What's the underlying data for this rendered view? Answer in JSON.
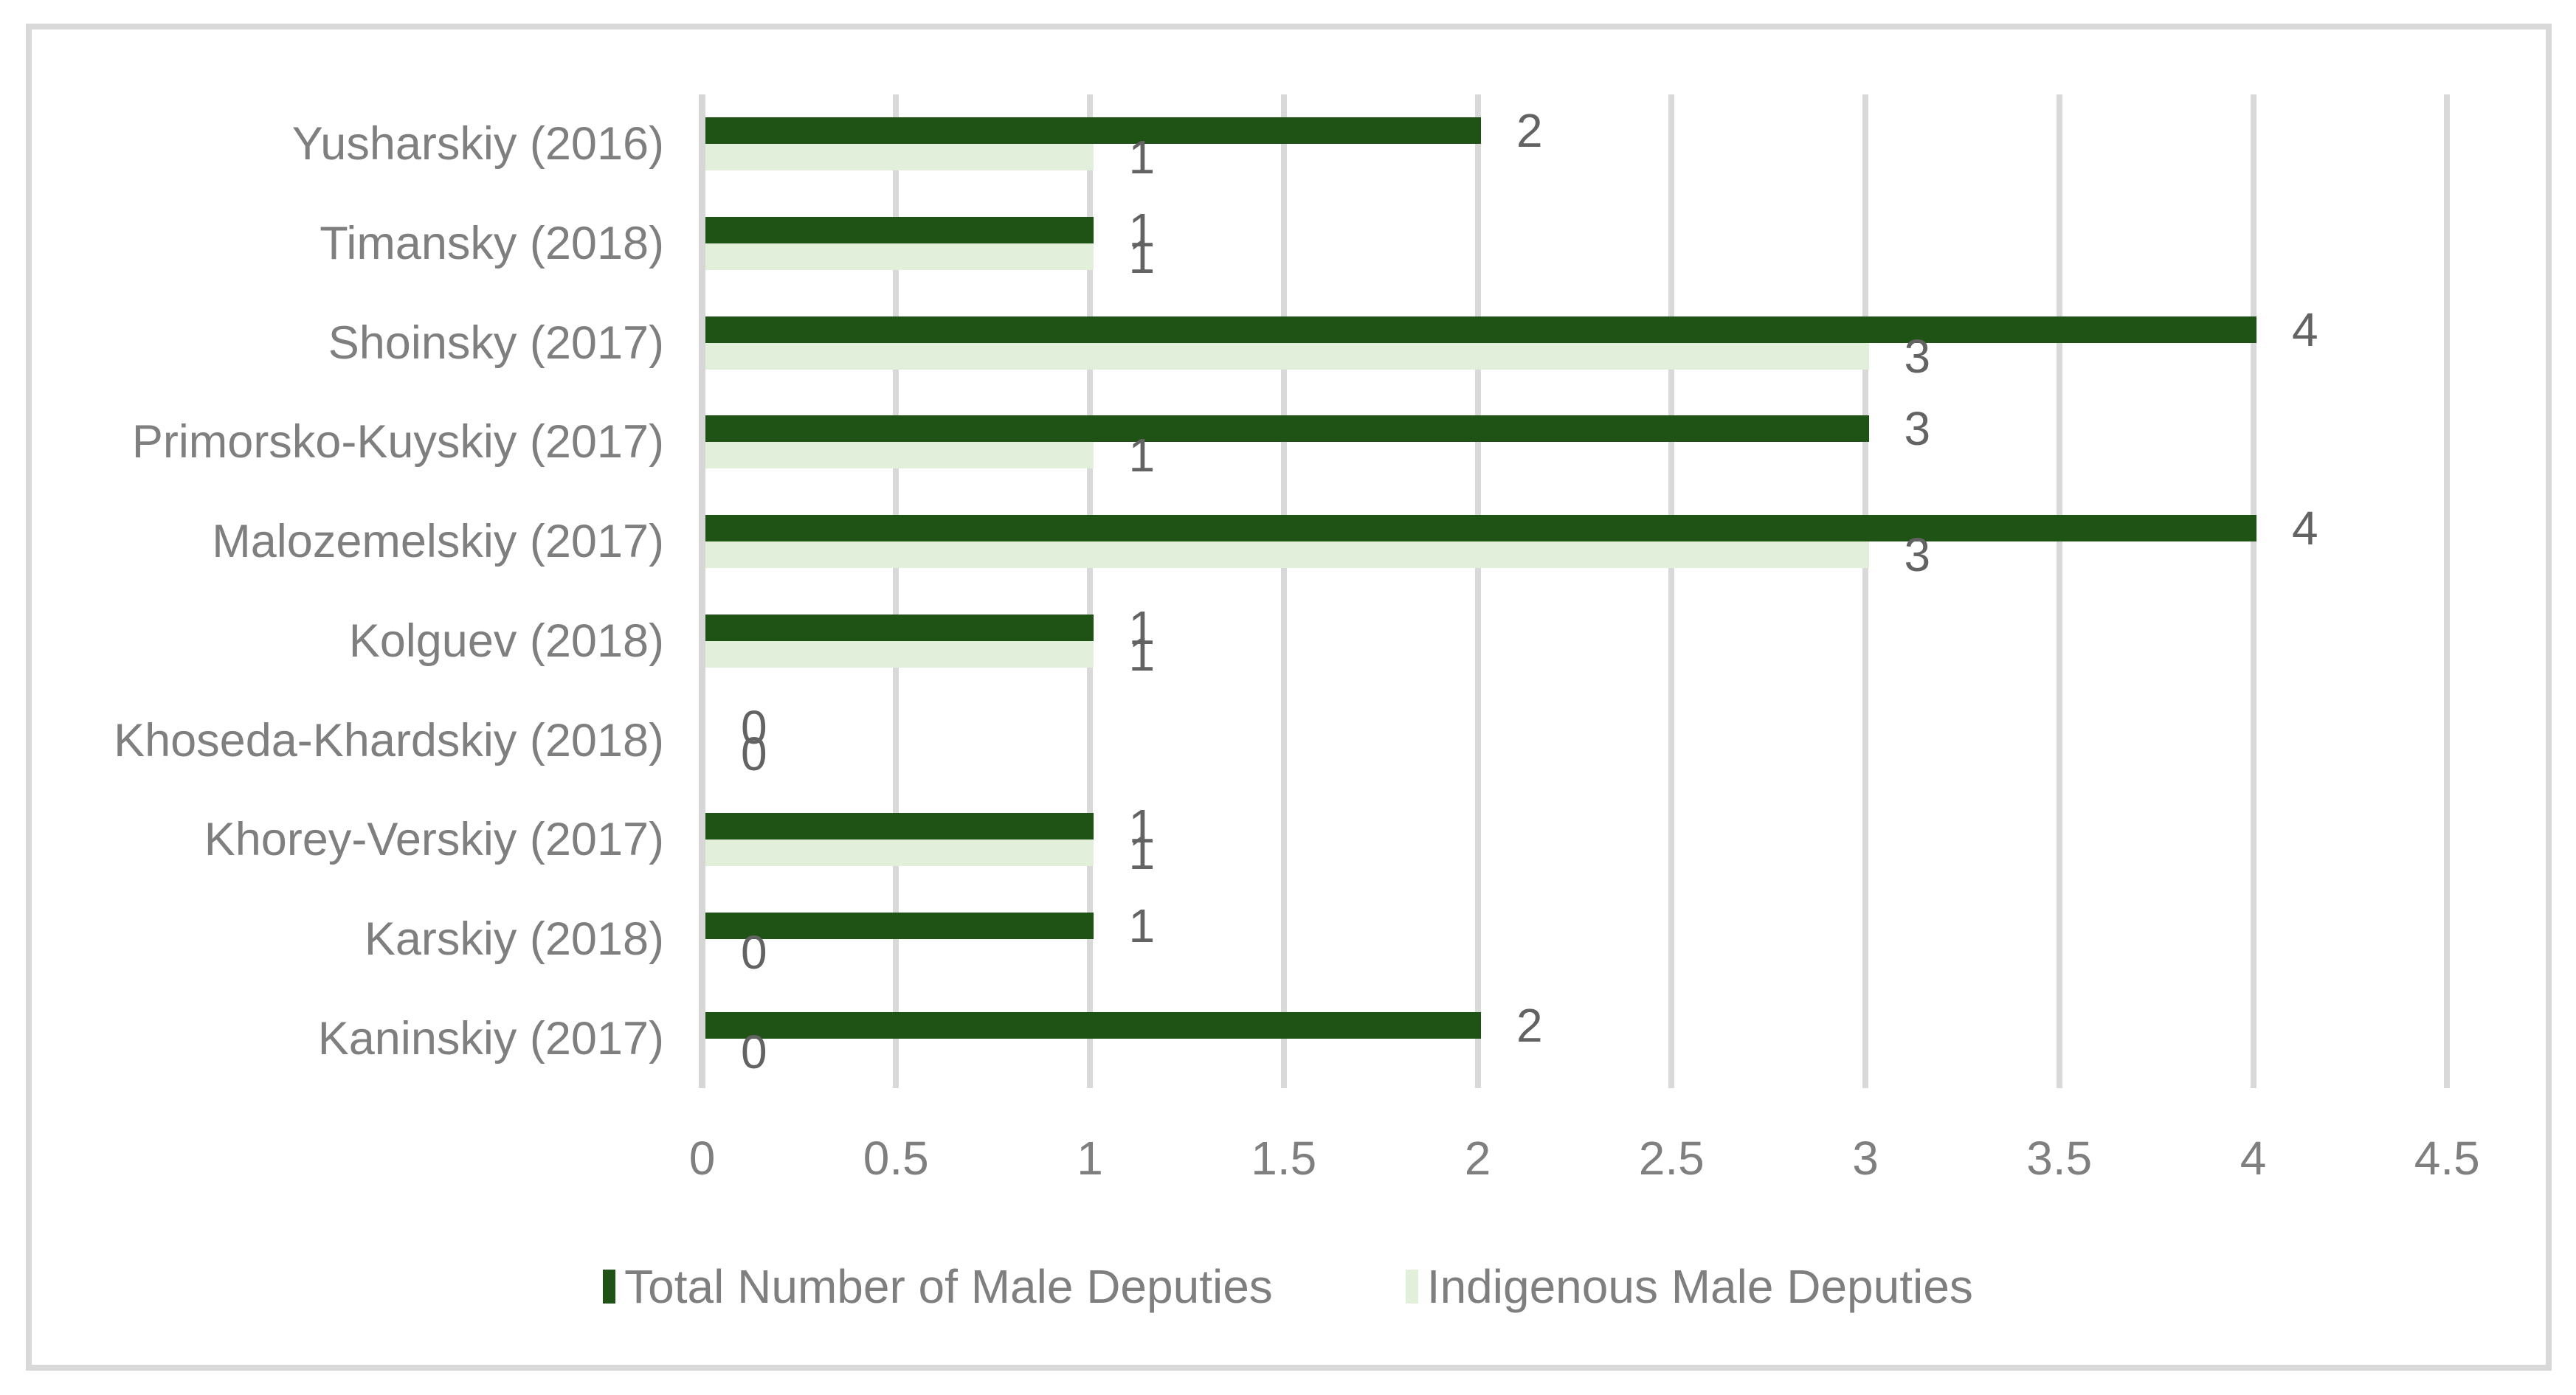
{
  "chart_data": {
    "type": "bar",
    "orientation": "horizontal",
    "title": "",
    "categories": [
      "Yusharskiy (2016)",
      "Timansky (2018)",
      "Shoinsky (2017)",
      "Primorsko-Kuyskiy (2017)",
      "Malozemelskiy (2017)",
      "Kolguev (2018)",
      "Khoseda-Khardskiy (2018)",
      "Khorey-Verskiy (2017)",
      "Karskiy (2018)",
      "Kaninskiy (2017)"
    ],
    "series": [
      {
        "name": "Total Number of Male Deputies",
        "color": "#1F5316",
        "values": [
          2,
          1,
          4,
          3,
          4,
          1,
          0,
          1,
          1,
          2
        ]
      },
      {
        "name": "Indigenous Male Deputies",
        "color": "#E2EFDA",
        "values": [
          1,
          1,
          3,
          1,
          3,
          1,
          0,
          1,
          0,
          0
        ]
      }
    ],
    "x_ticks": [
      0,
      0.5,
      1,
      1.5,
      2,
      2.5,
      3,
      3.5,
      4,
      4.5
    ],
    "xlim": [
      0,
      4.5
    ],
    "xlabel": "",
    "ylabel": "",
    "grid": true,
    "data_labels": true,
    "legend_position": "bottom"
  },
  "colors": {
    "background": "#FFFFFF",
    "chart_border": "#D9D9D9",
    "gridline": "#D9D9D9",
    "axis_line": "#D6D6D6",
    "axis_text": "#7F7F7F",
    "data_label_text": "#636363",
    "series_total": "#1F5316",
    "series_indigenous": "#E2EFDA"
  }
}
